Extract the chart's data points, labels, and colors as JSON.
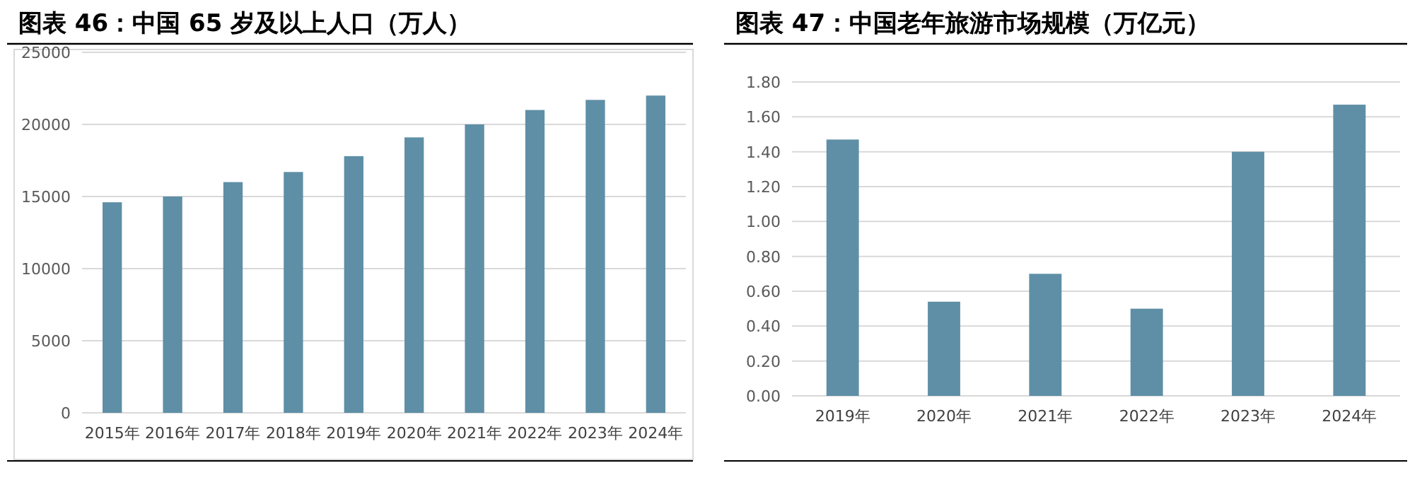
{
  "chart_data": [
    {
      "type": "bar",
      "title": "图表 46：中国 65 岁及以上人口（万人）",
      "categories": [
        "2015年",
        "2016年",
        "2017年",
        "2018年",
        "2019年",
        "2020年",
        "2021年",
        "2022年",
        "2023年",
        "2024年"
      ],
      "values": [
        14600,
        15000,
        16000,
        16700,
        17800,
        19100,
        20000,
        21000,
        21700,
        22000
      ],
      "color": "#5e8fa6",
      "ylim": [
        0,
        25000
      ],
      "yticks": [
        0,
        5000,
        10000,
        15000,
        20000,
        25000
      ],
      "grid": "y"
    },
    {
      "type": "bar",
      "title": "图表 47：中国老年旅游市场规模（万亿元）",
      "categories": [
        "2019年",
        "2020年",
        "2021年",
        "2022年",
        "2023年",
        "2024年"
      ],
      "values": [
        1.47,
        0.54,
        0.7,
        0.5,
        1.4,
        1.67
      ],
      "color": "#5e8fa6",
      "ylim": [
        0,
        1.8
      ],
      "yticks": [
        {
          "value": 0,
          "label": "0.00"
        },
        {
          "value": 0.2,
          "label": "0.20"
        },
        {
          "value": 0.4,
          "label": "0.40"
        },
        {
          "value": 0.6,
          "label": "0.60"
        },
        {
          "value": 0.8,
          "label": "0.80"
        },
        {
          "value": 1,
          "label": "1.00"
        },
        {
          "value": 1.2,
          "label": "1.20"
        },
        {
          "value": 1.4,
          "label": "1.40"
        },
        {
          "value": 1.6,
          "label": "1.60"
        },
        {
          "value": 1.8,
          "label": "1.80"
        }
      ],
      "grid": "y"
    }
  ]
}
